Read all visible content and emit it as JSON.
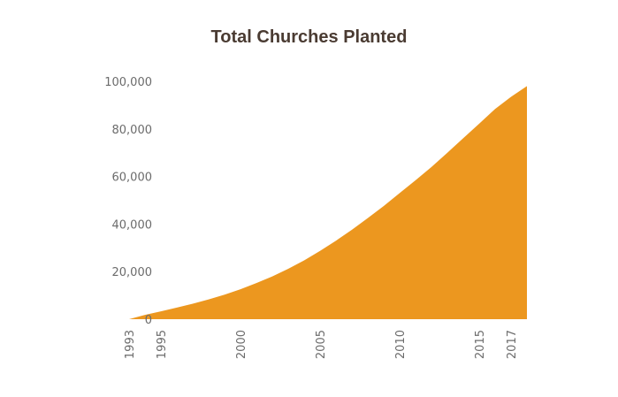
{
  "chart_data": {
    "type": "area",
    "title": "Total Churches Planted",
    "xlabel": "",
    "ylabel": "",
    "x": [
      1993,
      1994,
      1995,
      1996,
      1997,
      1998,
      1999,
      2000,
      2001,
      2002,
      2003,
      2004,
      2005,
      2006,
      2007,
      2008,
      2009,
      2010,
      2011,
      2012,
      2013,
      2014,
      2015,
      2016,
      2017,
      2018
    ],
    "series": [
      {
        "values": [
          0,
          1800,
          3300,
          4900,
          6500,
          8300,
          10300,
          12600,
          15200,
          18000,
          21200,
          24700,
          28700,
          33000,
          37600,
          42500,
          47600,
          53000,
          58400,
          64000,
          70000,
          76100,
          82200,
          88400,
          93500,
          98000
        ],
        "color": "#ec971f"
      }
    ],
    "xticks": [
      "1993",
      "1995",
      "2000",
      "2005",
      "2010",
      "2015",
      "2017"
    ],
    "yticks": [
      "0",
      "20,000",
      "40,000",
      "60,000",
      "80,000",
      "100,000"
    ],
    "ylim": [
      0,
      100000
    ],
    "xlim": [
      1993,
      2018
    ],
    "grid": false,
    "legend": "none"
  }
}
